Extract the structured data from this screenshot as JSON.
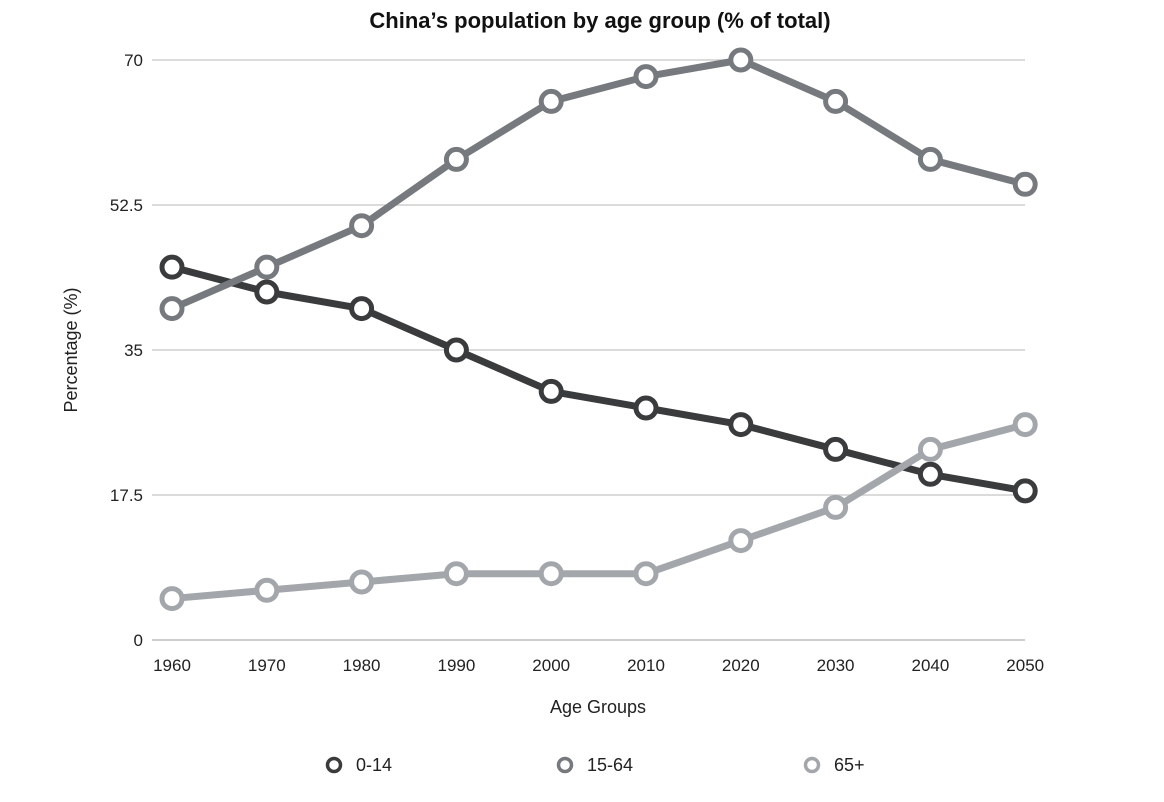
{
  "chart_data": {
    "type": "line",
    "title": "China’s population by age group (% of total)",
    "xlabel": "Age Groups",
    "ylabel": "Percentage (%)",
    "x": [
      "1960",
      "1970",
      "1980",
      "1990",
      "2000",
      "2010",
      "2020",
      "2030",
      "2040",
      "2050"
    ],
    "yticks": [
      "0",
      "17.5",
      "35",
      "52.5",
      "70"
    ],
    "ylim": [
      0,
      70
    ],
    "grid": true,
    "legend_position": "bottom",
    "series": [
      {
        "name": "0-14",
        "color": "#3a3b3d",
        "values": [
          45,
          42,
          40,
          35,
          30,
          28,
          26,
          23,
          20,
          18
        ]
      },
      {
        "name": "15-64",
        "color": "#76797d",
        "values": [
          40,
          45,
          50,
          58,
          65,
          68,
          70,
          65,
          58,
          55
        ]
      },
      {
        "name": "65+",
        "color": "#a3a7ac",
        "values": [
          5,
          6,
          7,
          8,
          8,
          8,
          12,
          16,
          23,
          26
        ]
      }
    ]
  }
}
